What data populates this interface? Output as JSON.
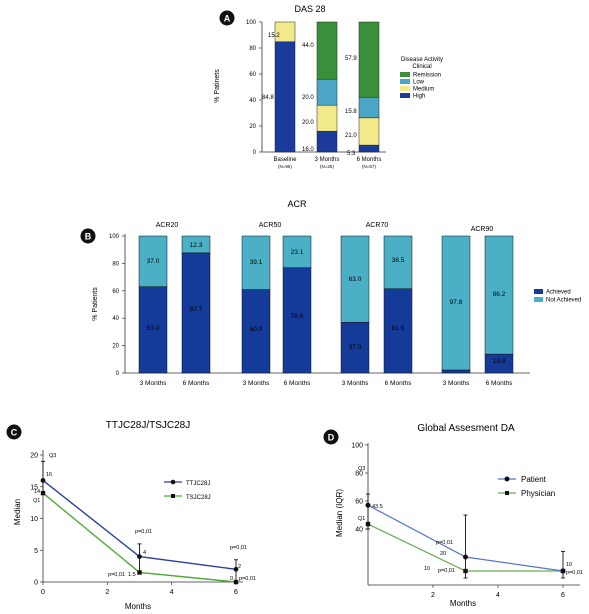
{
  "colors": {
    "high": "#1a3a9c",
    "medium": "#f2ea8a",
    "low": "#4aa6c4",
    "remission": "#3a8f3a",
    "achieved": "#143a9a",
    "not_achieved": "#4bb0c6",
    "ttjc": "#2a3fa8",
    "tsjc": "#4faa36",
    "patient": "#5577c8",
    "physician": "#6aaa55",
    "badge": "#111111"
  },
  "panelA": {
    "badge": "A",
    "title": "DAS 28",
    "ylabel": "% Patinets",
    "yticks": [
      "0",
      "20",
      "40",
      "60",
      "80",
      "100"
    ],
    "legend_title_1": "Disease Activity",
    "legend_title_2": "Clinical",
    "legend": [
      "Remission",
      "Low",
      "Medium",
      "High"
    ],
    "cat_labels": [
      "Baseline",
      "3 Months",
      "6 Months"
    ],
    "cat_sublabels": [
      "(N=96)",
      "(N=25)",
      "(N=57)"
    ],
    "bar_labels": [
      [
        "84.8",
        "",
        "15.2",
        ""
      ],
      [
        "16.0",
        "",
        "20.0",
        "20.0",
        "44.0"
      ],
      [
        "5.3",
        "21.0",
        "15.8",
        "57.9"
      ]
    ]
  },
  "panelB": {
    "badge": "B",
    "title": "ACR",
    "ylabel": "% Patients",
    "yticks": [
      "0",
      "20",
      "40",
      "60",
      "80",
      "100"
    ],
    "group_titles": [
      "ACR20",
      "ACR50",
      "ACR70",
      "ACR90"
    ],
    "cat_labels": [
      "3 Months",
      "6 Months",
      "3 Months",
      "6 Months",
      "3 Months",
      "6 Months",
      "3 Months",
      "6 Months"
    ],
    "legend": [
      "Achieved",
      "Not Achieved"
    ],
    "achieved_labels": [
      "63.0",
      "87.7",
      "60.9",
      "76.9",
      "37.0",
      "61.5",
      "",
      "13.8"
    ],
    "not_achieved_labels": [
      "37.0",
      "12.3",
      "39.1",
      "23.1",
      "63.0",
      "38.5",
      "97.8",
      "86.2"
    ]
  },
  "panelC": {
    "badge": "C",
    "title": "TTJC28J/TSJC28J",
    "ylabel": "Median",
    "xlabel": "Months",
    "yticks": [
      "0",
      "5",
      "10",
      "15",
      "20"
    ],
    "xticks": [
      "0",
      "2",
      "4",
      "6"
    ],
    "legend": [
      "TTJC28J",
      "TSJC28J"
    ],
    "annotations": {
      "q3": "Q3",
      "q1": "Q1",
      "v16": "16",
      "v14": "14",
      "v4": "4",
      "v15": "1.5",
      "v2": "2",
      "v0": "0",
      "p1": "p=0,01",
      "p2": "p=0,01",
      "p3": "p=0,01",
      "p4": "p=0,01"
    }
  },
  "panelD": {
    "badge": "D",
    "title": "Global Assesment DA",
    "ylabel": "Median (IQR)",
    "xlabel": "Months",
    "yticks": [
      "40",
      "60",
      "80",
      "100"
    ],
    "xticks": [
      "2",
      "4",
      "6"
    ],
    "legend": [
      "Patient",
      "Physician"
    ],
    "annotations": {
      "q3": "Q3",
      "q1": "Q1",
      "v435": "43.5",
      "v20": "20",
      "v10a": "10",
      "v10b": "10",
      "p1": "p=0,01",
      "p2": "p=0,01",
      "p3": "p=0,01"
    }
  },
  "chart_data": [
    {
      "type": "bar",
      "stacked": true,
      "title": "DAS 28",
      "ylabel": "% Patinets",
      "ylim": [
        0,
        100
      ],
      "categories": [
        "Baseline (N=96)",
        "3 Months (N=25)",
        "6 Months (N=57)"
      ],
      "series": [
        {
          "name": "High",
          "values": [
            84.8,
            16.0,
            5.3
          ]
        },
        {
          "name": "Medium",
          "values": [
            15.2,
            20.0,
            21.0
          ]
        },
        {
          "name": "Low",
          "values": [
            0,
            20.0,
            15.8
          ]
        },
        {
          "name": "Remission",
          "values": [
            0,
            44.0,
            57.9
          ]
        }
      ],
      "legend_position": "right"
    },
    {
      "type": "bar",
      "stacked": true,
      "title": "ACR",
      "ylabel": "% Patients",
      "ylim": [
        0,
        100
      ],
      "groups": [
        "ACR20",
        "ACR50",
        "ACR70",
        "ACR90"
      ],
      "categories": [
        "3 Months",
        "6 Months",
        "3 Months",
        "6 Months",
        "3 Months",
        "6 Months",
        "3 Months",
        "6 Months"
      ],
      "series": [
        {
          "name": "Achieved",
          "values": [
            63.0,
            87.7,
            60.9,
            76.9,
            37.0,
            61.5,
            2.2,
            13.8
          ]
        },
        {
          "name": "Not Achieved",
          "values": [
            37.0,
            12.3,
            39.1,
            23.1,
            63.0,
            38.5,
            97.8,
            86.2
          ]
        }
      ],
      "legend_position": "right"
    },
    {
      "type": "line",
      "title": "TTJC28J/TSJC28J",
      "xlabel": "Months",
      "ylabel": "Median",
      "xlim": [
        0,
        6
      ],
      "ylim": [
        0,
        20
      ],
      "x": [
        0,
        3,
        6
      ],
      "series": [
        {
          "name": "TTJC28J",
          "values": [
            16,
            4,
            2
          ]
        },
        {
          "name": "TSJC28J",
          "values": [
            14,
            1.5,
            0
          ]
        }
      ],
      "legend_position": "top-right"
    },
    {
      "type": "line",
      "title": "Global Assesment DA",
      "xlabel": "Months",
      "ylabel": "Median (IQR)",
      "xlim": [
        0,
        6.5
      ],
      "ylim": [
        0,
        100
      ],
      "x": [
        0,
        3,
        6
      ],
      "series": [
        {
          "name": "Patient",
          "values": [
            57,
            20,
            10
          ]
        },
        {
          "name": "Physician",
          "values": [
            43.5,
            10,
            10
          ]
        }
      ],
      "legend_position": "top-right"
    }
  ]
}
